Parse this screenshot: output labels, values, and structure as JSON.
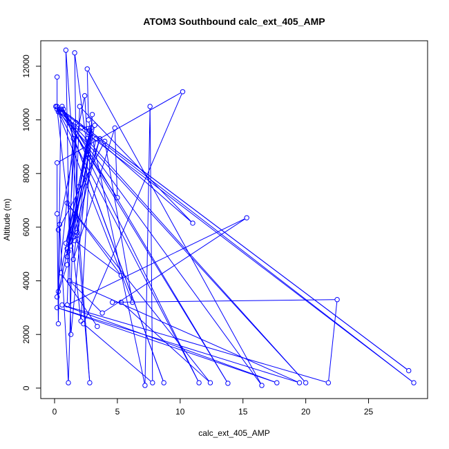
{
  "chart_data": {
    "type": "line",
    "title": "ATOM3 Southbound calc_ext_405_AMP",
    "xlabel": "calc_ext_405_AMP",
    "ylabel": "Altitude (m)",
    "xlim": [
      -1.1,
      29.7
    ],
    "ylim": [
      -390,
      12950
    ],
    "xticks": [
      0,
      5,
      10,
      15,
      20,
      25
    ],
    "yticks": [
      0,
      2000,
      4000,
      6000,
      8000,
      10000,
      12000
    ],
    "grid": false,
    "line_color": "#0000ff",
    "marker": "open-circle",
    "series": [
      {
        "points": [
          [
            0.2,
            11600
          ],
          [
            0.2,
            10400
          ],
          [
            2.1,
            2500
          ],
          [
            3.0,
            10200
          ],
          [
            1.3,
            2000
          ],
          [
            0.9,
            12600
          ],
          [
            2.8,
            200
          ],
          [
            1.8,
            5800
          ],
          [
            1.6,
            12500
          ],
          [
            2.7,
            8600
          ],
          [
            0.3,
            3600
          ],
          [
            0.5,
            10400
          ],
          [
            28.2,
            650
          ],
          [
            0.2,
            10500
          ],
          [
            20.0,
            200
          ],
          [
            0.3,
            10300
          ],
          [
            28.6,
            200
          ],
          [
            0.1,
            10500
          ],
          [
            11.5,
            200
          ],
          [
            0.6,
            10500
          ],
          [
            8.7,
            200
          ],
          [
            0.7,
            10400
          ],
          [
            13.8,
            180
          ],
          [
            0.6,
            10300
          ],
          [
            16.5,
            100
          ],
          [
            2.6,
            11900
          ],
          [
            2.7,
            10000
          ],
          [
            7.2,
            100
          ],
          [
            7.6,
            10500
          ],
          [
            7.8,
            200
          ],
          [
            2.3,
            2400
          ],
          [
            10.2,
            11050
          ],
          [
            0.2,
            8400
          ],
          [
            0.2,
            6500
          ],
          [
            0.3,
            2400
          ],
          [
            0.4,
            6100
          ],
          [
            1.1,
            200
          ],
          [
            1.7,
            9900
          ],
          [
            1.0,
            4600
          ],
          [
            0.2,
            3400
          ],
          [
            1.5,
            9300
          ],
          [
            1.0,
            3100
          ],
          [
            15.3,
            6350
          ],
          [
            3.8,
            2800
          ],
          [
            1.2,
            4000
          ],
          [
            19.5,
            200
          ],
          [
            0.2,
            3000
          ],
          [
            17.7,
            200
          ],
          [
            0.6,
            3100
          ],
          [
            21.8,
            200
          ],
          [
            22.5,
            3300
          ],
          [
            4.6,
            3200
          ],
          [
            5.3,
            3200
          ],
          [
            12.4,
            200
          ],
          [
            1.0,
            6900
          ],
          [
            5.3,
            4200
          ],
          [
            1.6,
            5500
          ],
          [
            2.0,
            10500
          ],
          [
            11.0,
            6150
          ],
          [
            3.3,
            9300
          ],
          [
            1.8,
            5700
          ],
          [
            1.0,
            5200
          ],
          [
            2.9,
            9500
          ],
          [
            1.5,
            4800
          ],
          [
            4.8,
            9700
          ],
          [
            5.0,
            7100
          ],
          [
            0.1,
            10500
          ],
          [
            6.2,
            3200
          ],
          [
            4.0,
            9200
          ],
          [
            0.3,
            5900
          ],
          [
            2.4,
            10900
          ],
          [
            2.6,
            9300
          ],
          [
            1.9,
            7500
          ],
          [
            2.8,
            9600
          ],
          [
            2.1,
            9700
          ],
          [
            3.2,
            9800
          ],
          [
            1.1,
            5100
          ],
          [
            2.7,
            8700
          ],
          [
            1.3,
            5300
          ],
          [
            3.6,
            9300
          ],
          [
            0.9,
            5400
          ],
          [
            2.9,
            9700
          ],
          [
            1.0,
            4900
          ],
          [
            2.8,
            9600
          ],
          [
            0.5,
            4300
          ],
          [
            3.4,
            2300
          ]
        ]
      }
    ]
  }
}
